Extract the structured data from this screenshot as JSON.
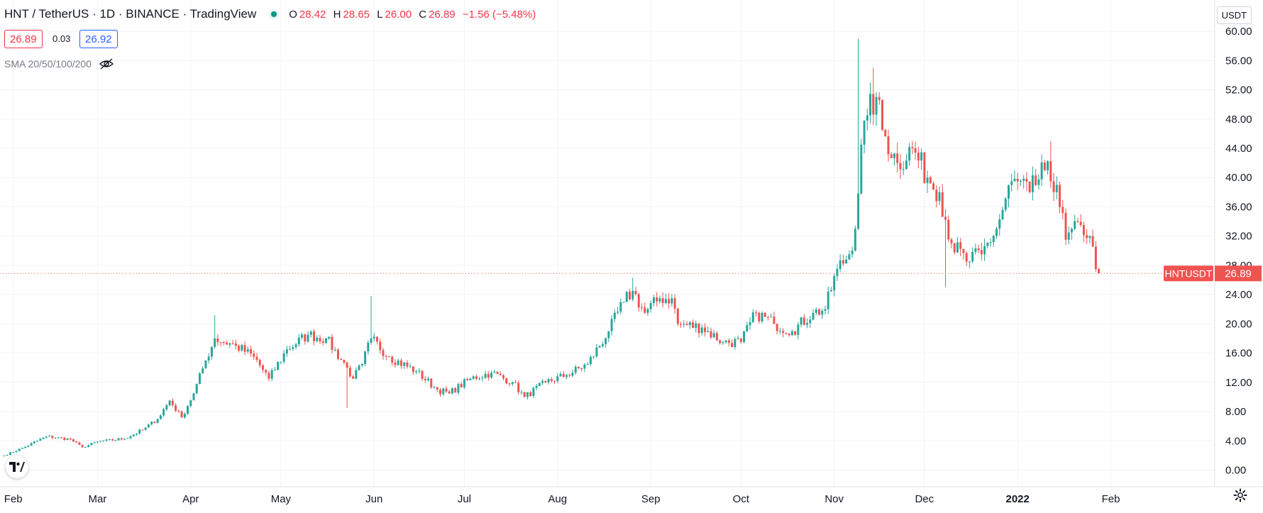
{
  "header": {
    "symbol_line": "HNT / TetherUS · 1D · BINANCE · TradingView",
    "ohlc": {
      "o_label": "O",
      "o": "28.42",
      "h_label": "H",
      "h": "28.65",
      "l_label": "L",
      "l": "26.00",
      "c_label": "C",
      "c": "26.89",
      "change": "−1.56 (−5.48%)"
    },
    "bid": "26.89",
    "spread": "0.03",
    "ask": "26.92",
    "indicator": "SMA 20/50/100/200",
    "currency": "USDT"
  },
  "colors": {
    "up": "#26a69a",
    "down": "#ef5350",
    "grid": "#f0f3fa",
    "text": "#131722"
  },
  "chart_data": {
    "type": "candlestick",
    "symbol": "HNTUSDT",
    "last_price": 26.89,
    "ylim": [
      -1.5,
      63.5
    ],
    "y_ticks": [
      0,
      4,
      8,
      12,
      16,
      20,
      24,
      28,
      32,
      36,
      40,
      44,
      48,
      52,
      56,
      60
    ],
    "y_tick_labels": [
      "0.00",
      "4.00",
      "8.00",
      "12.00",
      "16.00",
      "20.00",
      "24.00",
      "28.00",
      "32.00",
      "36.00",
      "40.00",
      "44.00",
      "48.00",
      "52.00",
      "56.00",
      "60.00"
    ],
    "x_tick_labels": [
      "Feb",
      "Mar",
      "Apr",
      "May",
      "Jun",
      "Jul",
      "Aug",
      "Sep",
      "Oct",
      "Nov",
      "Dec",
      "2022",
      "Feb"
    ],
    "price_label": "HNTUSDT",
    "price_value_label": "26.89",
    "grid": true,
    "series_anchors": [
      [
        "2021-01-29",
        2.0
      ],
      [
        "2021-02-05",
        3.2
      ],
      [
        "2021-02-12",
        4.6
      ],
      [
        "2021-02-20",
        4.2
      ],
      [
        "2021-02-24",
        3.1
      ],
      [
        "2021-03-01",
        3.9
      ],
      [
        "2021-03-10",
        4.3
      ],
      [
        "2021-03-16",
        5.5
      ],
      [
        "2021-03-21",
        7.0
      ],
      [
        "2021-03-25",
        9.5
      ],
      [
        "2021-03-29",
        7.2
      ],
      [
        "2021-04-02",
        10.5
      ],
      [
        "2021-04-06",
        15.0
      ],
      [
        "2021-04-09",
        18.0
      ],
      [
        "2021-04-16",
        17.0
      ],
      [
        "2021-04-22",
        15.5
      ],
      [
        "2021-04-27",
        12.5
      ],
      [
        "2021-05-03",
        16.5
      ],
      [
        "2021-05-10",
        18.5
      ],
      [
        "2021-05-16",
        18.0
      ],
      [
        "2021-05-23",
        14.0
      ],
      [
        "2021-05-25",
        12.5
      ],
      [
        "2021-05-28",
        14.5
      ],
      [
        "2021-05-31",
        18.0
      ],
      [
        "2021-06-06",
        15.5
      ],
      [
        "2021-06-15",
        13.5
      ],
      [
        "2021-06-22",
        11.0
      ],
      [
        "2021-06-26",
        10.5
      ],
      [
        "2021-07-03",
        12.5
      ],
      [
        "2021-07-10",
        13.3
      ],
      [
        "2021-07-17",
        12.0
      ],
      [
        "2021-07-21",
        10.0
      ],
      [
        "2021-07-28",
        12.0
      ],
      [
        "2021-08-04",
        13.0
      ],
      [
        "2021-08-11",
        14.5
      ],
      [
        "2021-08-18",
        19.0
      ],
      [
        "2021-08-23",
        23.0
      ],
      [
        "2021-08-26",
        24.5
      ],
      [
        "2021-08-30",
        21.5
      ],
      [
        "2021-09-04",
        23.5
      ],
      [
        "2021-09-08",
        23.5
      ],
      [
        "2021-09-10",
        20.0
      ],
      [
        "2021-09-18",
        19.5
      ],
      [
        "2021-09-25",
        17.5
      ],
      [
        "2021-10-01",
        17.5
      ],
      [
        "2021-10-06",
        21.5
      ],
      [
        "2021-10-12",
        20.0
      ],
      [
        "2021-10-18",
        19.0
      ],
      [
        "2021-10-25",
        21.5
      ],
      [
        "2021-10-29",
        22.0
      ],
      [
        "2021-11-02",
        27.5
      ],
      [
        "2021-11-06",
        29.5
      ],
      [
        "2021-11-08",
        33.0
      ],
      [
        "2021-11-10",
        44.5
      ],
      [
        "2021-11-12",
        48.5
      ],
      [
        "2021-11-15",
        51.0
      ],
      [
        "2021-11-17",
        46.5
      ],
      [
        "2021-11-22",
        42.0
      ],
      [
        "2021-11-27",
        44.0
      ],
      [
        "2021-12-02",
        40.0
      ],
      [
        "2021-12-06",
        38.0
      ],
      [
        "2021-12-10",
        31.0
      ],
      [
        "2021-12-15",
        28.5
      ],
      [
        "2021-12-20",
        29.5
      ],
      [
        "2021-12-25",
        33.0
      ],
      [
        "2021-12-30",
        39.5
      ],
      [
        "2022-01-05",
        38.0
      ],
      [
        "2022-01-10",
        41.0
      ],
      [
        "2022-01-14",
        39.0
      ],
      [
        "2022-01-17",
        31.5
      ],
      [
        "2022-01-22",
        33.5
      ],
      [
        "2022-01-25",
        32.0
      ],
      [
        "2022-01-27",
        27.5
      ],
      [
        "2022-01-28",
        26.89
      ]
    ],
    "notable_wicks": [
      [
        "2021-04-09",
        21.2
      ],
      [
        "2021-05-23",
        8.5
      ],
      [
        "2021-05-31",
        23.8
      ],
      [
        "2021-08-26",
        26.3
      ],
      [
        "2021-11-09",
        59.0
      ],
      [
        "2021-11-14",
        55.0
      ],
      [
        "2021-12-08",
        25.0
      ],
      [
        "2022-01-12",
        45.0
      ]
    ]
  }
}
